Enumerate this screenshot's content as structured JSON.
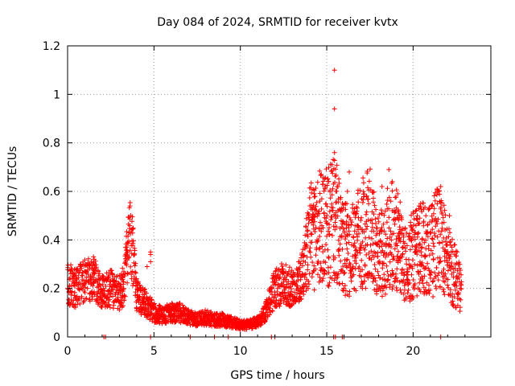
{
  "chart_data": {
    "type": "scatter",
    "title": "Day 084 of 2024, SRMTID for receiver kvtx",
    "xlabel": "GPS time / hours",
    "ylabel": "SRMTID / TECUs",
    "xlim": [
      0,
      24.5
    ],
    "ylim": [
      0,
      1.2
    ],
    "xticks": [
      0,
      5,
      10,
      15,
      20
    ],
    "yticks": [
      0,
      0.2,
      0.4,
      0.6,
      0.8,
      1.0,
      1.2
    ],
    "xtick_labels": [
      "0",
      "5",
      "10",
      "15",
      "20"
    ],
    "ytick_labels": [
      "0",
      "0.2",
      "0.4",
      "0.6",
      "0.8",
      "1",
      "1.2"
    ],
    "grid": true,
    "marker": "+",
    "color": "#ff0000",
    "series": [
      {
        "name": "SRMTID",
        "profile": [
          [
            0.0,
            0.22
          ],
          [
            0.5,
            0.2
          ],
          [
            1.0,
            0.24
          ],
          [
            1.5,
            0.24
          ],
          [
            2.0,
            0.19
          ],
          [
            2.5,
            0.2
          ],
          [
            3.0,
            0.18
          ],
          [
            3.3,
            0.22
          ],
          [
            3.5,
            0.4
          ],
          [
            3.7,
            0.4
          ],
          [
            4.0,
            0.17
          ],
          [
            4.5,
            0.14
          ],
          [
            5.0,
            0.1
          ],
          [
            5.5,
            0.09
          ],
          [
            6.0,
            0.1
          ],
          [
            6.5,
            0.1
          ],
          [
            7.0,
            0.08
          ],
          [
            7.5,
            0.07
          ],
          [
            8.0,
            0.08
          ],
          [
            8.5,
            0.07
          ],
          [
            9.0,
            0.07
          ],
          [
            9.5,
            0.06
          ],
          [
            10.0,
            0.05
          ],
          [
            10.5,
            0.05
          ],
          [
            11.0,
            0.06
          ],
          [
            11.5,
            0.11
          ],
          [
            12.0,
            0.2
          ],
          [
            12.5,
            0.22
          ],
          [
            13.0,
            0.2
          ],
          [
            13.5,
            0.24
          ],
          [
            14.0,
            0.4
          ],
          [
            14.5,
            0.45
          ],
          [
            15.0,
            0.45
          ],
          [
            15.5,
            0.48
          ],
          [
            16.0,
            0.35
          ],
          [
            16.5,
            0.38
          ],
          [
            17.0,
            0.42
          ],
          [
            17.5,
            0.45
          ],
          [
            18.0,
            0.32
          ],
          [
            18.5,
            0.4
          ],
          [
            19.0,
            0.42
          ],
          [
            19.5,
            0.3
          ],
          [
            20.0,
            0.34
          ],
          [
            20.5,
            0.36
          ],
          [
            21.0,
            0.34
          ],
          [
            21.5,
            0.42
          ],
          [
            22.0,
            0.3
          ],
          [
            22.5,
            0.24
          ],
          [
            22.8,
            0.18
          ]
        ],
        "outliers": [
          [
            15.45,
            1.1
          ],
          [
            15.45,
            0.94
          ],
          [
            15.45,
            0.76
          ],
          [
            15.3,
            0.71
          ],
          [
            15.1,
            0.64
          ],
          [
            16.3,
            0.68
          ],
          [
            16.2,
            0.6
          ],
          [
            18.6,
            0.69
          ],
          [
            18.8,
            0.64
          ],
          [
            18.2,
            0.62
          ],
          [
            21.6,
            0.62
          ],
          [
            21.4,
            0.6
          ],
          [
            22.1,
            0.5
          ],
          [
            14.9,
            0.61
          ],
          [
            14.6,
            0.56
          ],
          [
            4.8,
            0.35
          ],
          [
            4.8,
            0.34
          ],
          [
            4.8,
            0.31
          ],
          [
            1.5,
            0.33
          ],
          [
            4.6,
            0.29
          ],
          [
            2.1,
            0.0
          ],
          [
            2.2,
            0.0
          ],
          [
            4.8,
            0.0
          ],
          [
            7.1,
            0.0
          ],
          [
            8.5,
            0.0
          ],
          [
            9.3,
            0.0
          ],
          [
            11.8,
            0.0
          ],
          [
            12.0,
            0.0
          ],
          [
            15.4,
            0.0
          ],
          [
            15.5,
            0.0
          ],
          [
            15.9,
            0.0
          ],
          [
            16.0,
            0.0
          ],
          [
            21.6,
            0.0
          ]
        ]
      }
    ]
  }
}
